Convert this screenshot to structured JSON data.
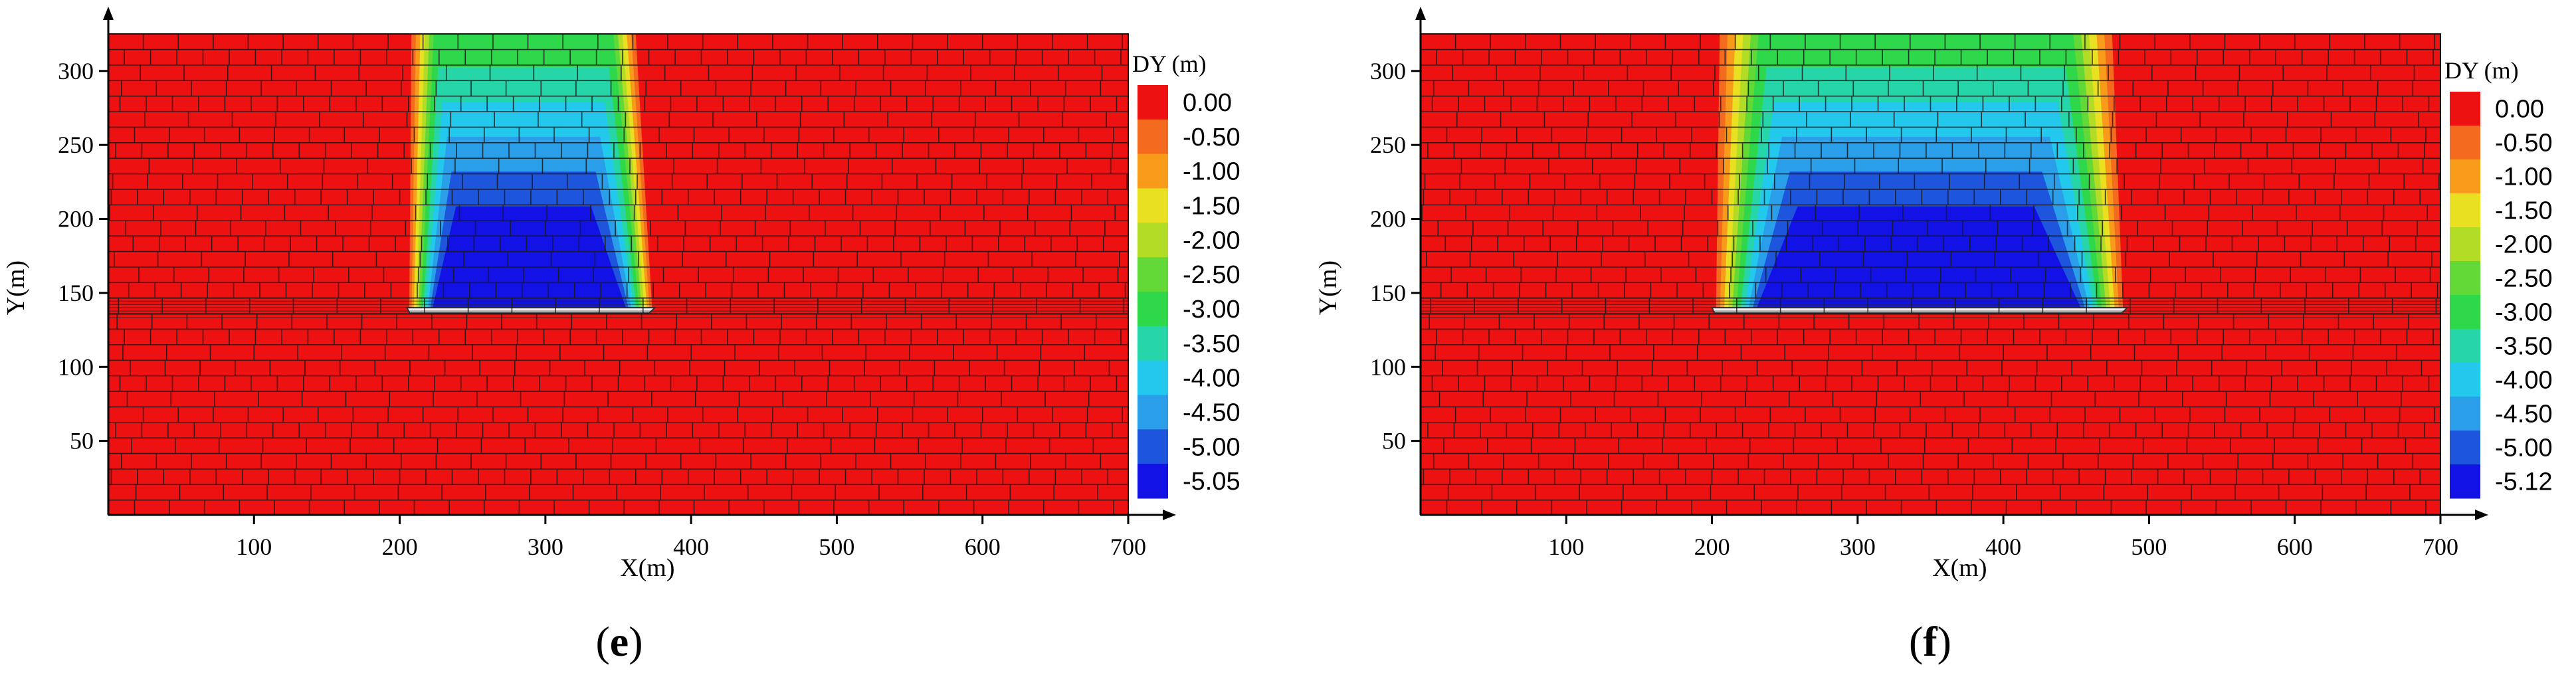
{
  "colors": {
    "red": "#ee1111",
    "orange": "#f46a1e",
    "light_orange": "#f99b1a",
    "yellow": "#e8e020",
    "yellow_green": "#b2dc26",
    "green_light": "#62d936",
    "green": "#2ed84a",
    "teal": "#27d6a8",
    "cyan": "#22c9ec",
    "blue_light": "#2a9ee8",
    "blue": "#1d55dc",
    "blue_dark": "#1212e6"
  },
  "chart_data": [
    {
      "type": "heatmap",
      "panel_label": "e",
      "xlabel": "X(m)",
      "ylabel": "Y(m)",
      "xlim": [
        0,
        700
      ],
      "ylim": [
        0,
        330
      ],
      "xticks": [
        "100",
        "200",
        "300",
        "400",
        "500",
        "600",
        "700"
      ],
      "yticks": [
        "50",
        "100",
        "150",
        "200",
        "250",
        "300"
      ],
      "legend_title": "DY (m)",
      "legend_labels": [
        "0.00",
        "-0.50",
        "-1.00",
        "-1.50",
        "-2.00",
        "-2.50",
        "-3.00",
        "-3.50",
        "-4.00",
        "-4.50",
        "-5.00",
        "-5.05"
      ],
      "model_top_y": 325,
      "seam_y": 140,
      "goaf_x": [
        205,
        375
      ],
      "subsidence_zone": {
        "x_top": [
          205,
          365
        ],
        "x_bottom": [
          205,
          375
        ],
        "center_x": 285,
        "max_dy": -5.05
      }
    },
    {
      "type": "heatmap",
      "panel_label": "f",
      "xlabel": "X(m)",
      "ylabel": "Y(m)",
      "xlim": [
        0,
        700
      ],
      "ylim": [
        0,
        330
      ],
      "xticks": [
        "100",
        "200",
        "300",
        "400",
        "500",
        "600",
        "700"
      ],
      "yticks": [
        "50",
        "100",
        "150",
        "200",
        "250",
        "300"
      ],
      "legend_title": "DY (m)",
      "legend_labels": [
        "0.00",
        "-0.50",
        "-1.00",
        "-1.50",
        "-2.00",
        "-2.50",
        "-3.00",
        "-3.50",
        "-4.00",
        "-4.50",
        "-5.00",
        "-5.12"
      ],
      "model_top_y": 325,
      "seam_y": 140,
      "goaf_x": [
        200,
        485
      ],
      "subsidence_zone": {
        "x_top": [
          200,
          480
        ],
        "x_bottom": [
          200,
          485
        ],
        "center_x": 340,
        "max_dy": -5.12
      }
    }
  ]
}
